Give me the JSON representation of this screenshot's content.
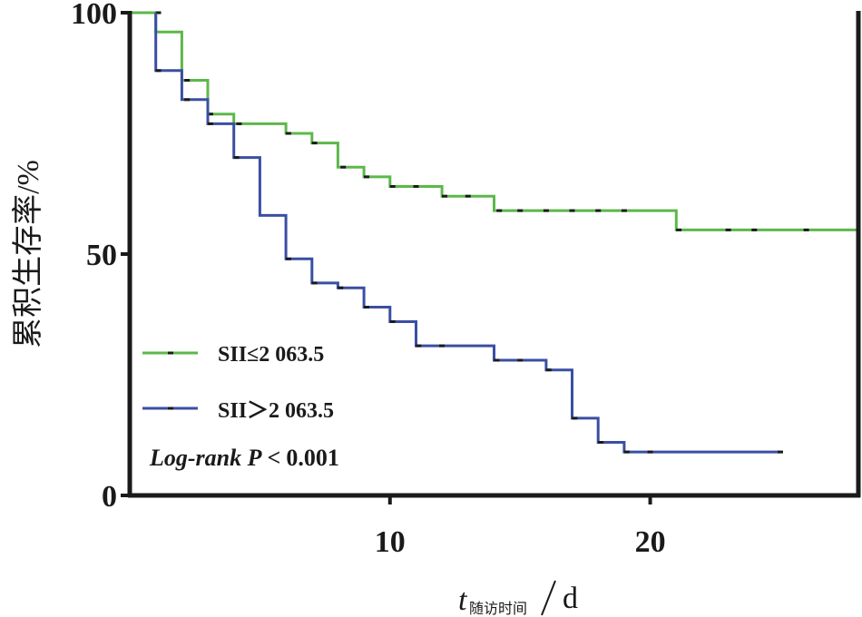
{
  "chart_data": {
    "type": "line",
    "subtype": "kaplan-meier-step",
    "xlabel": {
      "main": "t",
      "subscript": "随访时间",
      "unit": "d"
    },
    "ylabel": "累积生存率/%",
    "xlim": [
      0,
      28
    ],
    "ylim": [
      0,
      100
    ],
    "xticks": [
      10,
      20
    ],
    "yticks": [
      0,
      50,
      100
    ],
    "grid": false,
    "legend_position": "lower-left",
    "annotation": {
      "prefix": "Log-rank P",
      "operator": "<",
      "value": "0.001"
    },
    "series": [
      {
        "name": "SII≤2 063.5",
        "color": "#5cb84a",
        "steps": [
          [
            0,
            100
          ],
          [
            1,
            100
          ],
          [
            1,
            96
          ],
          [
            2,
            96
          ],
          [
            2,
            86
          ],
          [
            3,
            86
          ],
          [
            3,
            79
          ],
          [
            4,
            79
          ],
          [
            4,
            77
          ],
          [
            6,
            77
          ],
          [
            6,
            75
          ],
          [
            7,
            75
          ],
          [
            7,
            73
          ],
          [
            8,
            73
          ],
          [
            8,
            68
          ],
          [
            9,
            68
          ],
          [
            9,
            66
          ],
          [
            10,
            66
          ],
          [
            10,
            64
          ],
          [
            12,
            64
          ],
          [
            12,
            62
          ],
          [
            14,
            62
          ],
          [
            14,
            59
          ],
          [
            21,
            59
          ],
          [
            21,
            55
          ],
          [
            28,
            55
          ]
        ],
        "censored": [
          [
            1.1,
            100
          ],
          [
            2.2,
            86
          ],
          [
            3.1,
            79
          ],
          [
            4.2,
            77
          ],
          [
            6.1,
            75
          ],
          [
            7.1,
            73
          ],
          [
            8.2,
            68
          ],
          [
            9.1,
            66
          ],
          [
            10.1,
            64
          ],
          [
            11,
            64
          ],
          [
            12.1,
            62
          ],
          [
            13,
            62
          ],
          [
            14.2,
            59
          ],
          [
            15,
            59
          ],
          [
            16,
            59
          ],
          [
            17,
            59
          ],
          [
            18,
            59
          ],
          [
            19,
            59
          ],
          [
            21.1,
            55
          ],
          [
            23,
            55
          ],
          [
            24,
            55
          ],
          [
            26,
            55
          ]
        ]
      },
      {
        "name": "SII＞2 063.5",
        "color": "#3a4fa3",
        "steps": [
          [
            1,
            100
          ],
          [
            1,
            88
          ],
          [
            2,
            88
          ],
          [
            2,
            82
          ],
          [
            3,
            82
          ],
          [
            3,
            77
          ],
          [
            4,
            77
          ],
          [
            4,
            70
          ],
          [
            5,
            70
          ],
          [
            5,
            58
          ],
          [
            6,
            58
          ],
          [
            6,
            49
          ],
          [
            7,
            49
          ],
          [
            7,
            44
          ],
          [
            8,
            44
          ],
          [
            8,
            43
          ],
          [
            9,
            43
          ],
          [
            9,
            39
          ],
          [
            10,
            39
          ],
          [
            10,
            36
          ],
          [
            11,
            36
          ],
          [
            11,
            31
          ],
          [
            14,
            31
          ],
          [
            14,
            28
          ],
          [
            16,
            28
          ],
          [
            16,
            26
          ],
          [
            17,
            26
          ],
          [
            17,
            16
          ],
          [
            18,
            16
          ],
          [
            18,
            11
          ],
          [
            19,
            11
          ],
          [
            19,
            9
          ],
          [
            25,
            9
          ]
        ],
        "censored": [
          [
            1.1,
            88
          ],
          [
            2.2,
            82
          ],
          [
            3.1,
            77
          ],
          [
            4.1,
            70
          ],
          [
            6.1,
            49
          ],
          [
            7.1,
            44
          ],
          [
            8.1,
            43
          ],
          [
            9.1,
            39
          ],
          [
            10.1,
            36
          ],
          [
            11.1,
            31
          ],
          [
            12,
            31
          ],
          [
            14.1,
            28
          ],
          [
            15,
            28
          ],
          [
            16.1,
            26
          ],
          [
            17.1,
            16
          ],
          [
            18.1,
            11
          ],
          [
            19.1,
            9
          ],
          [
            20,
            9
          ],
          [
            25,
            9
          ]
        ]
      }
    ]
  }
}
